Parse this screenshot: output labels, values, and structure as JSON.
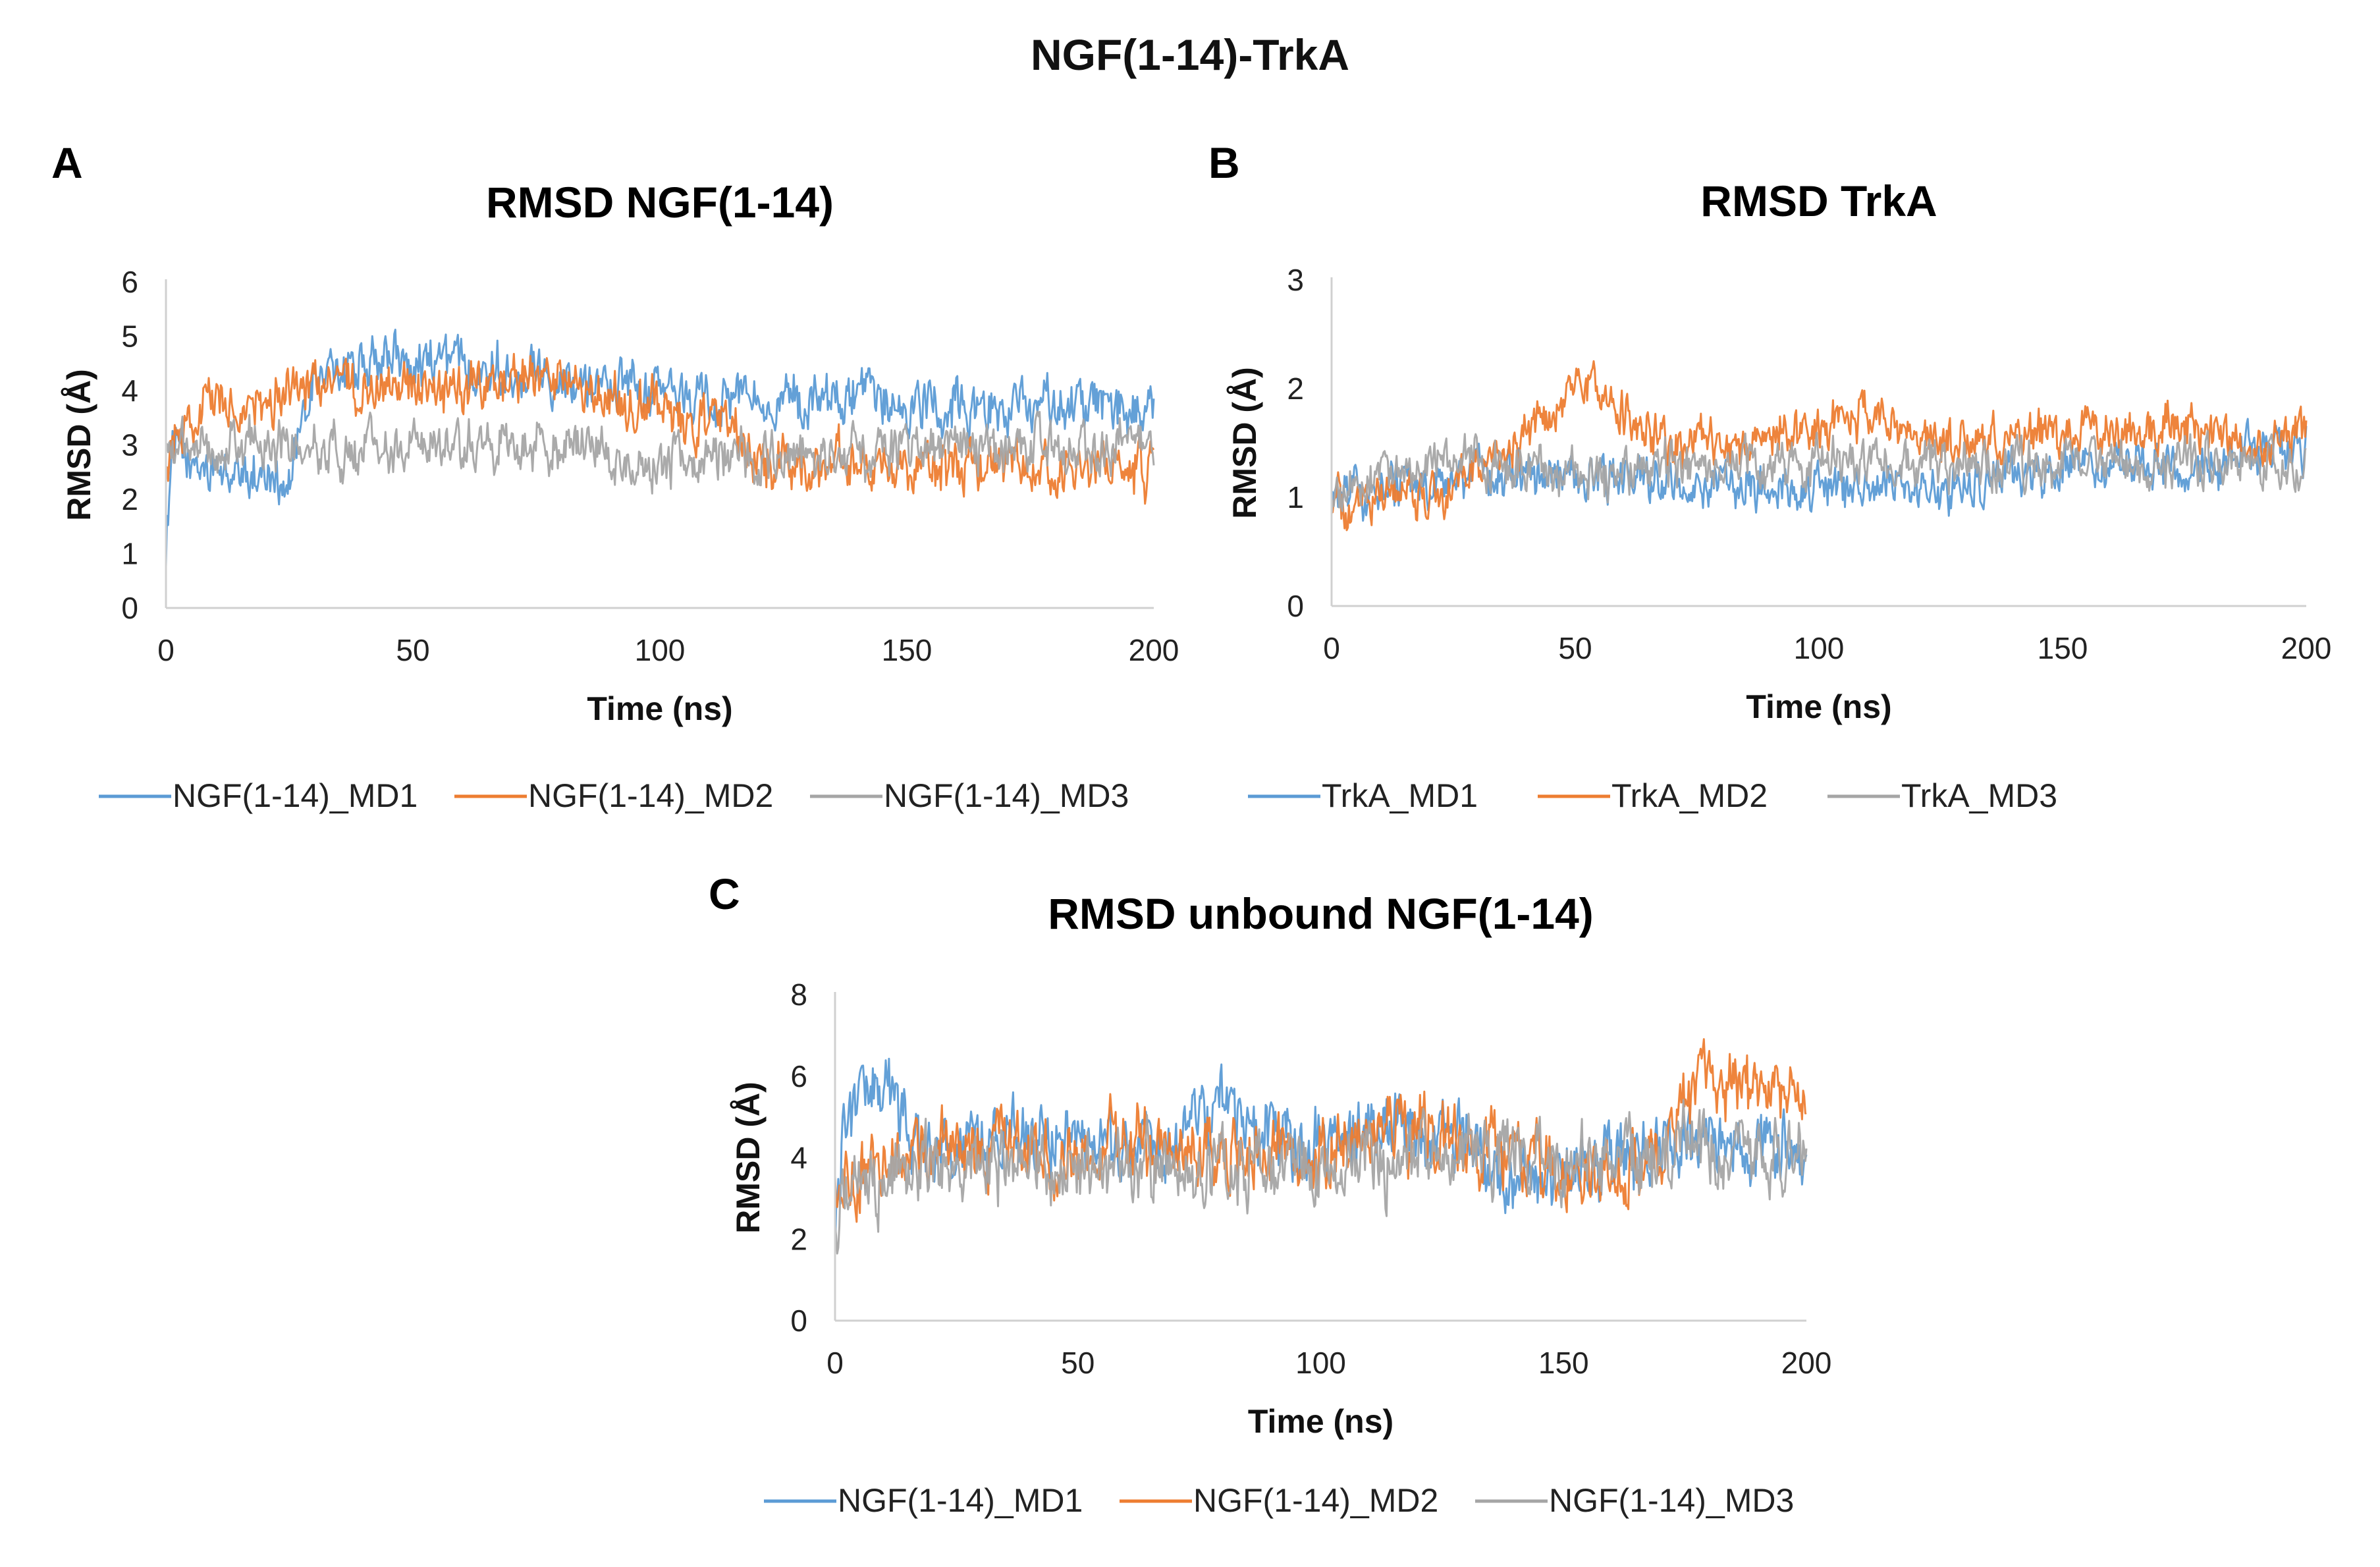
{
  "figure": {
    "title": "NGF(1-14)-TrkA",
    "colors": {
      "series1": "#5b9bd5",
      "series2": "#ed7d31",
      "series3": "#a5a5a5"
    }
  },
  "chart_data": [
    {
      "type": "line",
      "panel": "A",
      "title": "RMSD NGF(1-14)",
      "xlabel": "Time (ns)",
      "ylabel": "RMSD (Å)",
      "xlim": [
        0,
        200
      ],
      "ylim": [
        0,
        6
      ],
      "xticks": [
        0,
        50,
        100,
        150,
        200
      ],
      "yticks": [
        0,
        1,
        2,
        3,
        4,
        5,
        6
      ],
      "legend_position": "bottom",
      "noise": 0.35,
      "series": [
        {
          "name": "NGF(1-14)_MD1",
          "color": "#5b9bd5",
          "x": [
            0,
            1,
            5,
            10,
            15,
            20,
            25,
            30,
            40,
            50,
            60,
            70,
            80,
            90,
            100,
            110,
            120,
            130,
            140,
            150,
            160,
            170,
            180,
            190,
            200
          ],
          "y": [
            1.0,
            3.0,
            2.6,
            2.5,
            2.4,
            2.5,
            2.3,
            4.2,
            4.5,
            4.6,
            4.5,
            4.4,
            4.3,
            4.1,
            3.9,
            3.8,
            4.0,
            3.7,
            3.8,
            3.7,
            3.8,
            3.6,
            3.8,
            3.7,
            3.6
          ]
        },
        {
          "name": "NGF(1-14)_MD2",
          "color": "#ed7d31",
          "x": [
            0,
            1,
            5,
            10,
            15,
            20,
            25,
            30,
            40,
            50,
            60,
            70,
            80,
            90,
            100,
            110,
            120,
            130,
            140,
            150,
            160,
            170,
            180,
            190,
            200
          ],
          "y": [
            2.5,
            3.0,
            3.5,
            3.8,
            3.6,
            3.7,
            4.0,
            4.1,
            4.0,
            3.9,
            4.0,
            4.2,
            4.1,
            3.9,
            3.7,
            3.4,
            2.8,
            2.6,
            2.6,
            2.5,
            2.5,
            2.6,
            2.5,
            2.6,
            2.6
          ]
        },
        {
          "name": "NGF(1-14)_MD3",
          "color": "#a5a5a5",
          "x": [
            0,
            1,
            5,
            10,
            15,
            20,
            25,
            30,
            40,
            50,
            60,
            70,
            80,
            90,
            100,
            110,
            120,
            130,
            140,
            150,
            160,
            170,
            180,
            190,
            200
          ],
          "y": [
            2.8,
            3.0,
            3.1,
            3.0,
            3.1,
            3.0,
            3.0,
            3.0,
            3.0,
            3.1,
            3.0,
            3.0,
            3.0,
            2.9,
            2.7,
            2.8,
            2.8,
            2.8,
            2.8,
            2.9,
            2.9,
            3.0,
            3.0,
            3.0,
            3.0
          ]
        }
      ]
    },
    {
      "type": "line",
      "panel": "B",
      "title": "RMSD TrkA",
      "xlabel": "Time (ns)",
      "ylabel": "RMSD (Å)",
      "xlim": [
        0,
        200
      ],
      "ylim": [
        0,
        3
      ],
      "xticks": [
        0,
        50,
        100,
        150,
        200
      ],
      "yticks": [
        0,
        1,
        2,
        3
      ],
      "legend_position": "bottom",
      "noise": 0.16,
      "series": [
        {
          "name": "TrkA_MD1",
          "color": "#5b9bd5",
          "x": [
            0,
            1,
            5,
            10,
            15,
            20,
            25,
            30,
            40,
            50,
            60,
            70,
            80,
            90,
            100,
            110,
            120,
            130,
            140,
            150,
            160,
            170,
            180,
            190,
            200
          ],
          "y": [
            0.9,
            1.0,
            1.0,
            1.0,
            1.1,
            1.1,
            1.2,
            1.2,
            1.2,
            1.2,
            1.2,
            1.1,
            1.1,
            1.1,
            1.1,
            1.1,
            1.1,
            1.1,
            1.2,
            1.3,
            1.3,
            1.3,
            1.3,
            1.4,
            1.4
          ]
        },
        {
          "name": "TrkA_MD2",
          "color": "#ed7d31",
          "x": [
            0,
            1,
            5,
            10,
            15,
            20,
            25,
            30,
            40,
            50,
            60,
            70,
            80,
            90,
            100,
            110,
            120,
            130,
            140,
            150,
            160,
            170,
            180,
            190,
            200
          ],
          "y": [
            0.9,
            0.9,
            0.9,
            1.0,
            1.0,
            1.0,
            1.1,
            1.3,
            1.6,
            2.0,
            1.8,
            1.5,
            1.4,
            1.6,
            1.6,
            1.8,
            1.5,
            1.5,
            1.5,
            1.6,
            1.6,
            1.7,
            1.6,
            1.5,
            1.6
          ]
        },
        {
          "name": "TrkA_MD3",
          "color": "#a5a5a5",
          "x": [
            0,
            1,
            5,
            10,
            15,
            20,
            25,
            30,
            40,
            50,
            60,
            70,
            80,
            90,
            100,
            110,
            120,
            130,
            140,
            150,
            160,
            170,
            180,
            190,
            200
          ],
          "y": [
            0.9,
            1.0,
            1.1,
            1.2,
            1.3,
            1.3,
            1.4,
            1.3,
            1.3,
            1.2,
            1.2,
            1.3,
            1.3,
            1.3,
            1.3,
            1.3,
            1.3,
            1.3,
            1.3,
            1.3,
            1.3,
            1.3,
            1.3,
            1.3,
            1.3
          ]
        }
      ]
    },
    {
      "type": "line",
      "panel": "C",
      "title": "RMSD unbound NGF(1-14)",
      "xlabel": "Time (ns)",
      "ylabel": "RMSD (Å)",
      "xlim": [
        0,
        200
      ],
      "ylim": [
        0,
        8
      ],
      "xticks": [
        0,
        50,
        100,
        150,
        200
      ],
      "yticks": [
        0,
        2,
        4,
        6,
        8
      ],
      "legend_position": "bottom",
      "noise": 0.65,
      "series": [
        {
          "name": "NGF(1-14)_MD1",
          "color": "#5b9bd5",
          "x": [
            0,
            1,
            5,
            10,
            15,
            20,
            25,
            30,
            40,
            50,
            60,
            70,
            80,
            90,
            100,
            110,
            120,
            130,
            140,
            150,
            160,
            170,
            180,
            190,
            200
          ],
          "y": [
            2.0,
            4.0,
            5.5,
            6.0,
            5.0,
            4.3,
            4.2,
            4.4,
            4.6,
            4.4,
            4.2,
            4.5,
            5.0,
            4.4,
            4.2,
            4.8,
            4.6,
            4.2,
            3.4,
            3.6,
            3.8,
            4.0,
            4.5,
            4.3,
            4.0
          ]
        },
        {
          "name": "NGF(1-14)_MD2",
          "color": "#ed7d31",
          "x": [
            0,
            1,
            5,
            10,
            15,
            20,
            25,
            30,
            40,
            50,
            60,
            70,
            80,
            90,
            100,
            110,
            120,
            130,
            140,
            150,
            160,
            170,
            180,
            190,
            200
          ],
          "y": [
            3.0,
            3.5,
            3.6,
            3.8,
            4.0,
            4.1,
            4.2,
            4.1,
            4.0,
            4.2,
            4.3,
            4.2,
            4.1,
            4.0,
            4.2,
            4.4,
            4.6,
            4.3,
            3.9,
            3.7,
            3.6,
            4.0,
            6.2,
            5.6,
            5.4
          ]
        },
        {
          "name": "NGF(1-14)_MD3",
          "color": "#a5a5a5",
          "x": [
            0,
            1,
            5,
            10,
            15,
            20,
            25,
            30,
            40,
            50,
            60,
            70,
            80,
            90,
            100,
            110,
            120,
            130,
            140,
            150,
            160,
            170,
            180,
            190,
            200
          ],
          "y": [
            2.5,
            3.0,
            3.4,
            3.6,
            3.8,
            3.9,
            3.8,
            3.7,
            3.8,
            3.9,
            3.8,
            3.7,
            3.8,
            3.8,
            3.7,
            3.9,
            4.0,
            4.3,
            4.0,
            3.9,
            4.0,
            4.1,
            4.2,
            4.1,
            4.0
          ]
        }
      ]
    }
  ]
}
